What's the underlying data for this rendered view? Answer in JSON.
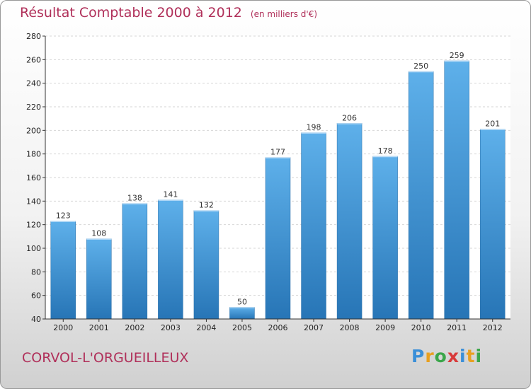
{
  "title": "Résultat Comptable 2000 à 2012",
  "unit": "(en milliers d'€)",
  "commune": "CORVOL-L'ORGUEILLEUX",
  "logo": {
    "letters": [
      "P",
      "r",
      "o",
      "x",
      "i",
      "t",
      "i"
    ],
    "colors": [
      "#3a8fd8",
      "#e8a020",
      "#3aa64a",
      "#d83a3a",
      "#3a8fd8",
      "#e8a020",
      "#3aa64a"
    ]
  },
  "chart_data": {
    "type": "bar",
    "categories": [
      "2000",
      "2001",
      "2002",
      "2003",
      "2004",
      "2005",
      "2006",
      "2007",
      "2008",
      "2009",
      "2010",
      "2011",
      "2012"
    ],
    "values": [
      123,
      108,
      138,
      141,
      132,
      50,
      177,
      198,
      206,
      178,
      250,
      259,
      201
    ],
    "ylim": [
      40,
      280
    ],
    "yticks": [
      40,
      60,
      80,
      100,
      120,
      140,
      160,
      180,
      200,
      220,
      240,
      260,
      280
    ],
    "bar_color": "#3d97db",
    "grid": true
  }
}
